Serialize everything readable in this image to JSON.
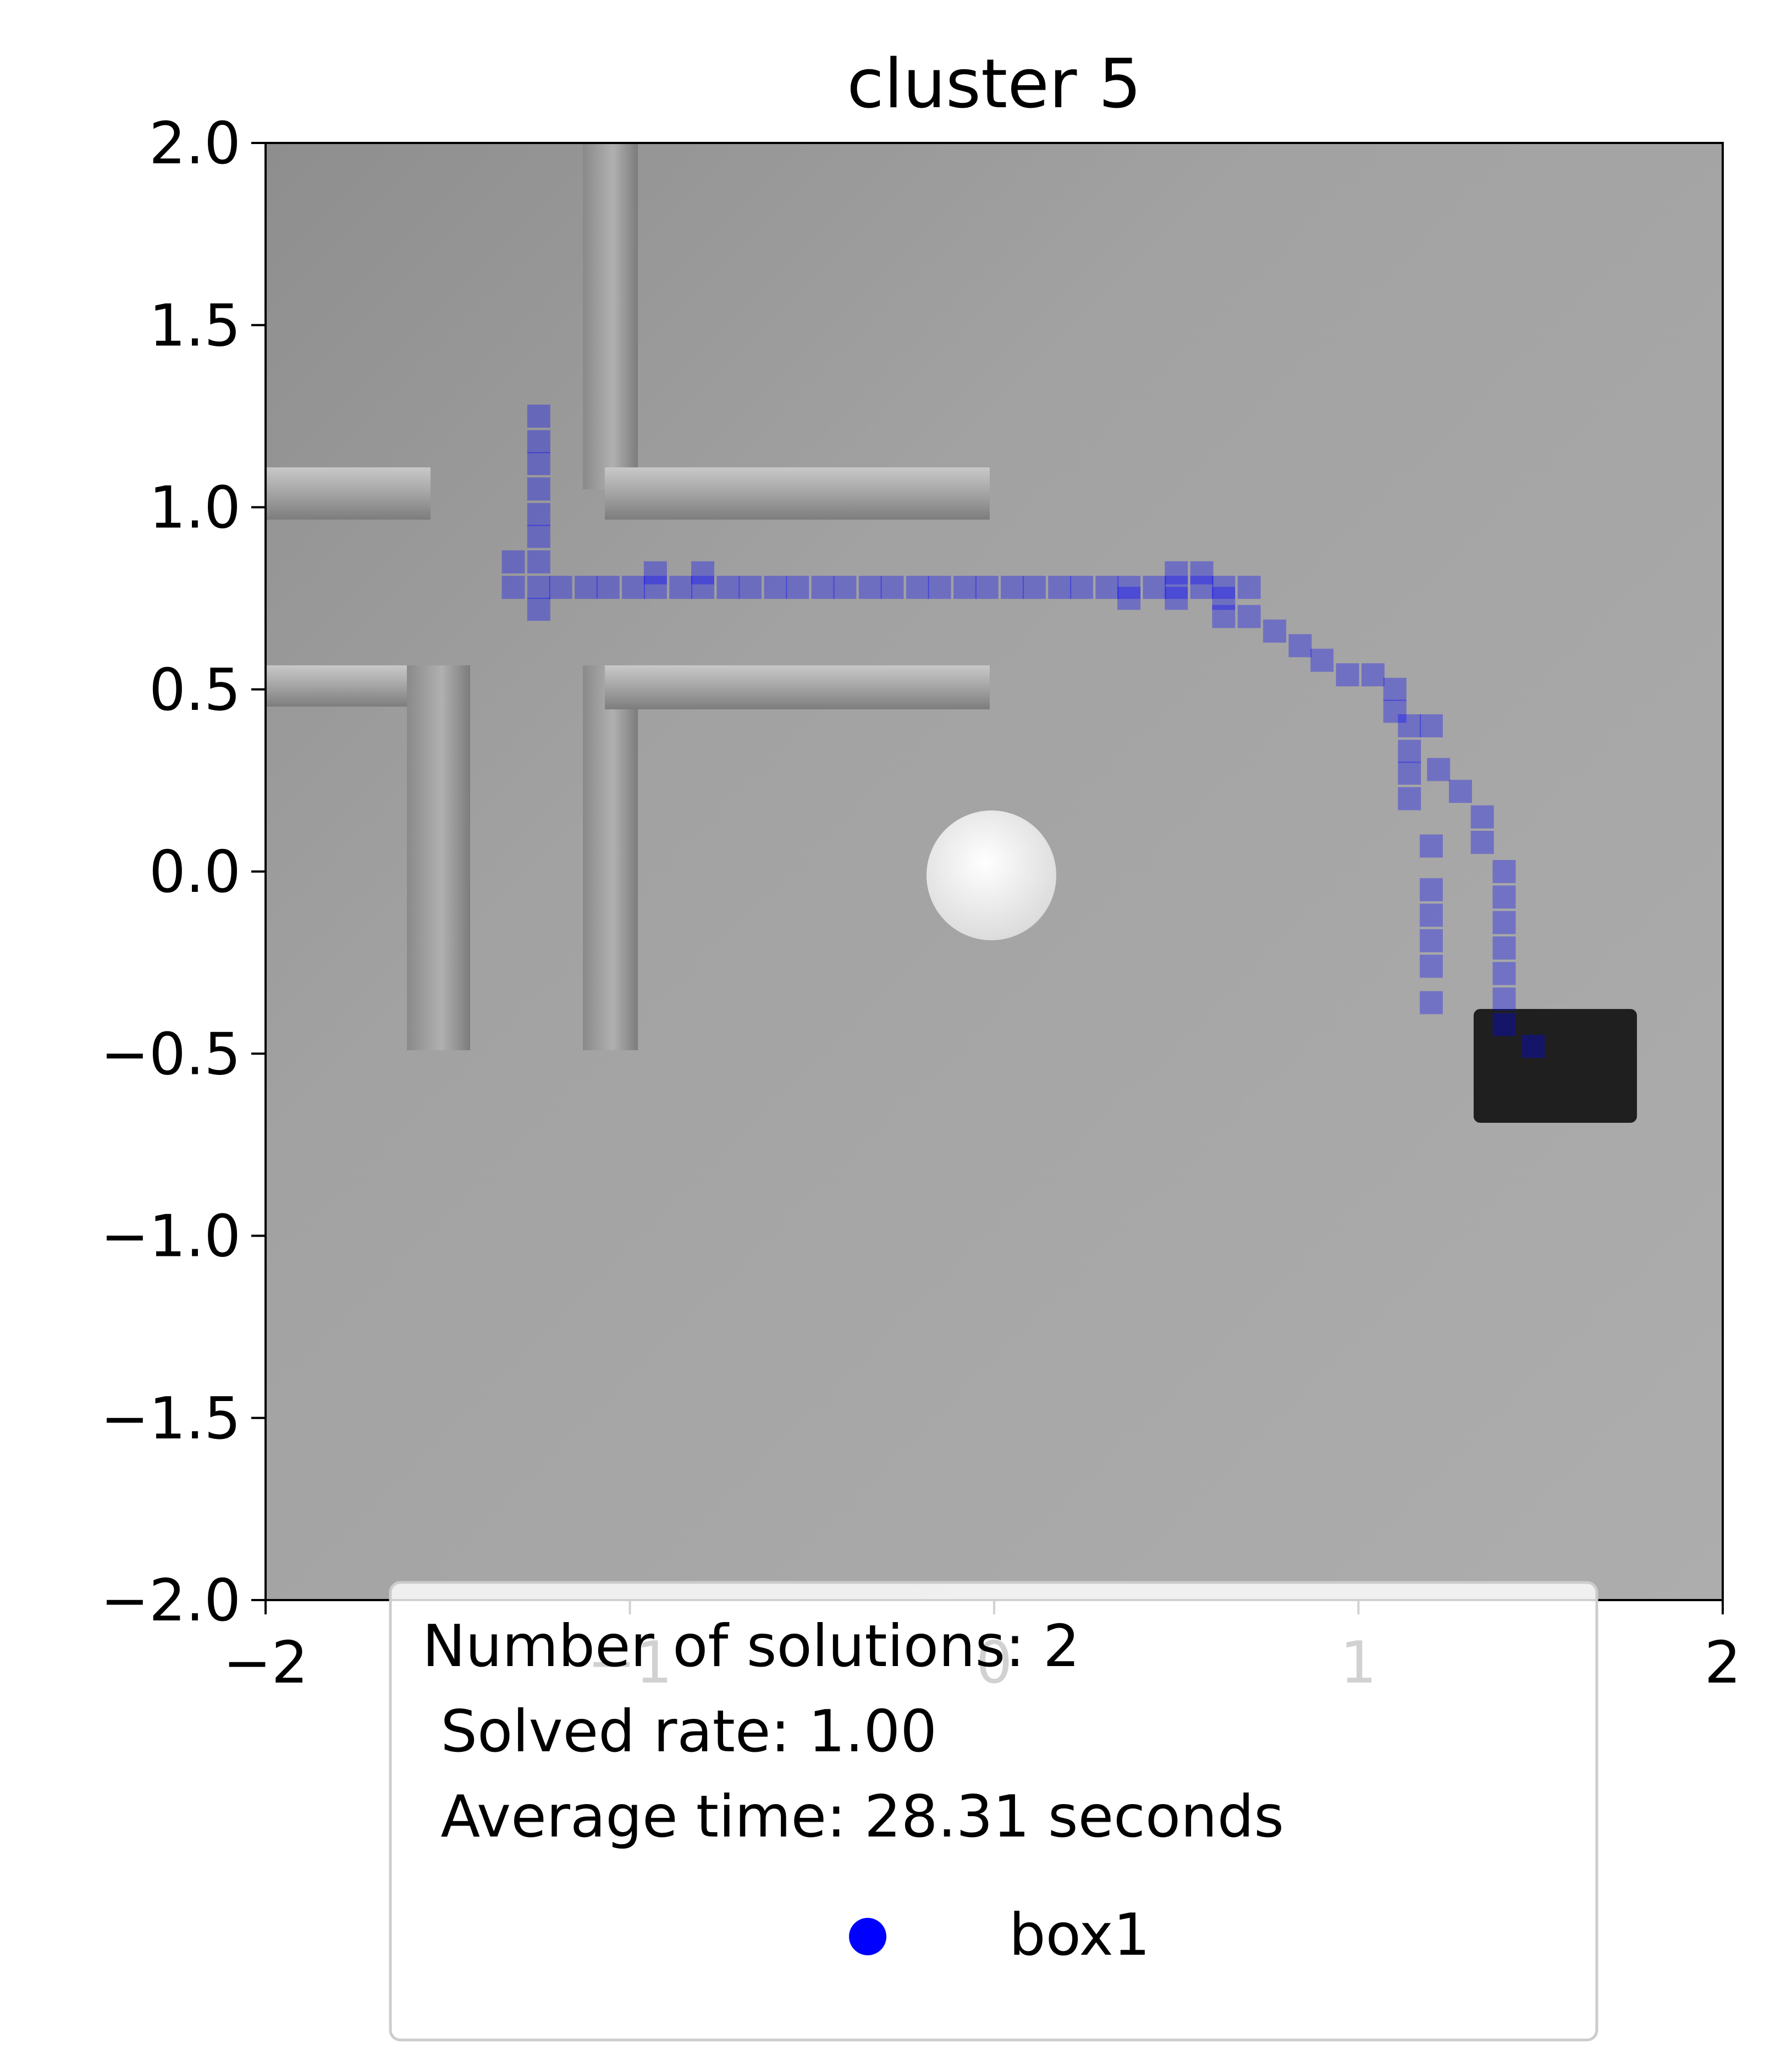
{
  "chart_data": {
    "type": "scatter",
    "title": "cluster 5",
    "xlabel": "",
    "ylabel": "",
    "xlim": [
      -2,
      2
    ],
    "ylim": [
      -2,
      2
    ],
    "xticks": [
      "−2",
      "−1",
      "0",
      "1",
      "2"
    ],
    "yticks": [
      "2.0",
      "1.5",
      "1.0",
      "0.5",
      "0.0",
      "−0.5",
      "−1.0",
      "−1.5",
      "−2.0"
    ],
    "grid": false,
    "legend_position": "bottom-center",
    "legend": {
      "lines": [
        "Number of solutions: 2",
        " Solved rate: 1.00",
        " Average time: 28.31 seconds"
      ],
      "series_label": "box1",
      "marker_color": "#0000ff"
    },
    "series": [
      {
        "name": "box1",
        "color": "#0000ff",
        "points": [
          [
            -1.25,
            1.25
          ],
          [
            -1.25,
            1.18
          ],
          [
            -1.25,
            1.12
          ],
          [
            -1.25,
            1.05
          ],
          [
            -1.25,
            0.98
          ],
          [
            -1.25,
            0.92
          ],
          [
            -1.25,
            0.85
          ],
          [
            -1.25,
            0.78
          ],
          [
            -1.25,
            0.72
          ],
          [
            -1.32,
            0.85
          ],
          [
            -1.32,
            0.78
          ],
          [
            -1.19,
            0.78
          ],
          [
            -1.12,
            0.78
          ],
          [
            -1.06,
            0.78
          ],
          [
            -0.99,
            0.78
          ],
          [
            -0.93,
            0.78
          ],
          [
            -0.86,
            0.78
          ],
          [
            -0.8,
            0.78
          ],
          [
            -0.73,
            0.78
          ],
          [
            -0.67,
            0.78
          ],
          [
            -0.6,
            0.78
          ],
          [
            -0.54,
            0.78
          ],
          [
            -0.47,
            0.78
          ],
          [
            -0.41,
            0.78
          ],
          [
            -0.34,
            0.78
          ],
          [
            -0.28,
            0.78
          ],
          [
            -0.21,
            0.78
          ],
          [
            -0.15,
            0.78
          ],
          [
            -0.08,
            0.78
          ],
          [
            -0.02,
            0.78
          ],
          [
            0.05,
            0.78
          ],
          [
            0.11,
            0.78
          ],
          [
            0.18,
            0.78
          ],
          [
            0.24,
            0.78
          ],
          [
            0.31,
            0.78
          ],
          [
            0.37,
            0.78
          ],
          [
            0.44,
            0.78
          ],
          [
            0.5,
            0.78
          ],
          [
            0.57,
            0.78
          ],
          [
            0.63,
            0.78
          ],
          [
            0.7,
            0.78
          ],
          [
            -0.93,
            0.82
          ],
          [
            -0.8,
            0.82
          ],
          [
            0.5,
            0.82
          ],
          [
            0.57,
            0.82
          ],
          [
            0.37,
            0.75
          ],
          [
            0.5,
            0.75
          ],
          [
            0.63,
            0.75
          ],
          [
            0.63,
            0.7
          ],
          [
            0.7,
            0.7
          ],
          [
            0.77,
            0.66
          ],
          [
            0.84,
            0.62
          ],
          [
            0.9,
            0.58
          ],
          [
            0.97,
            0.54
          ],
          [
            1.04,
            0.54
          ],
          [
            1.1,
            0.5
          ],
          [
            1.1,
            0.44
          ],
          [
            1.14,
            0.4
          ],
          [
            1.2,
            0.4
          ],
          [
            1.14,
            0.33
          ],
          [
            1.14,
            0.27
          ],
          [
            1.14,
            0.2
          ],
          [
            1.22,
            0.28
          ],
          [
            1.28,
            0.22
          ],
          [
            1.34,
            0.15
          ],
          [
            1.34,
            0.08
          ],
          [
            1.2,
            0.07
          ],
          [
            1.2,
            -0.05
          ],
          [
            1.2,
            -0.12
          ],
          [
            1.2,
            -0.19
          ],
          [
            1.2,
            -0.26
          ],
          [
            1.2,
            -0.36
          ],
          [
            1.4,
            0.0
          ],
          [
            1.4,
            -0.07
          ],
          [
            1.4,
            -0.14
          ],
          [
            1.4,
            -0.21
          ],
          [
            1.4,
            -0.28
          ],
          [
            1.4,
            -0.35
          ],
          [
            1.4,
            -0.42
          ],
          [
            1.48,
            -0.48
          ]
        ]
      }
    ]
  }
}
